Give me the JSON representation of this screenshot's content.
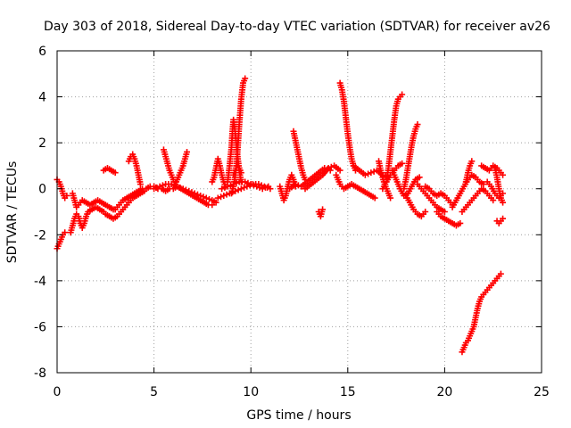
{
  "chart_data": {
    "type": "scatter",
    "title": "Day 303 of 2018, Sidereal Day-to-day VTEC variation (SDTVAR) for receiver av26",
    "xlabel": "GPS time / hours",
    "ylabel": "SDTVAR / TECUs",
    "xlim": [
      0,
      25
    ],
    "ylim": [
      -8,
      6
    ],
    "xticks": [
      0,
      5,
      10,
      15,
      20,
      25
    ],
    "yticks": [
      -8,
      -6,
      -4,
      -2,
      0,
      2,
      4,
      6
    ],
    "xtick_labels": [
      "0",
      "5",
      "10",
      "15",
      "20",
      "25"
    ],
    "ytick_labels": [
      "-8",
      "-6",
      "-4",
      "-2",
      "0",
      "2",
      "4",
      "6"
    ],
    "grid": true,
    "marker": "plus",
    "color": "#ff0000",
    "segments": [
      [
        [
          0.0,
          -2.6
        ],
        [
          0.1,
          -2.4
        ],
        [
          0.2,
          -2.2
        ],
        [
          0.3,
          -2.0
        ],
        [
          0.4,
          -1.9
        ]
      ],
      [
        [
          0.0,
          0.4
        ],
        [
          0.1,
          0.3
        ],
        [
          0.2,
          0.1
        ],
        [
          0.3,
          -0.2
        ],
        [
          0.4,
          -0.4
        ],
        [
          0.5,
          -0.3
        ]
      ],
      [
        [
          0.7,
          -1.9
        ],
        [
          0.8,
          -1.6
        ],
        [
          0.9,
          -1.3
        ],
        [
          1.0,
          -1.1
        ],
        [
          1.1,
          -1.2
        ],
        [
          1.2,
          -1.5
        ],
        [
          1.3,
          -1.7
        ],
        [
          1.4,
          -1.5
        ],
        [
          1.5,
          -1.2
        ],
        [
          1.6,
          -1.0
        ],
        [
          1.8,
          -0.9
        ],
        [
          2.0,
          -0.8
        ],
        [
          2.2,
          -0.9
        ],
        [
          2.4,
          -1.0
        ]
      ],
      [
        [
          0.8,
          -0.2
        ],
        [
          0.9,
          -0.5
        ],
        [
          1.0,
          -0.8
        ],
        [
          1.1,
          -0.7
        ],
        [
          1.3,
          -0.5
        ],
        [
          1.5,
          -0.6
        ],
        [
          1.7,
          -0.7
        ],
        [
          1.9,
          -0.6
        ],
        [
          2.1,
          -0.5
        ],
        [
          2.3,
          -0.6
        ],
        [
          2.5,
          -0.7
        ],
        [
          2.7,
          -0.8
        ],
        [
          2.9,
          -0.9
        ]
      ],
      [
        [
          2.5,
          -1.1
        ],
        [
          2.7,
          -1.2
        ],
        [
          2.9,
          -1.3
        ],
        [
          3.1,
          -1.2
        ],
        [
          3.3,
          -1.0
        ],
        [
          3.5,
          -0.8
        ],
        [
          3.7,
          -0.6
        ],
        [
          3.9,
          -0.4
        ],
        [
          4.1,
          -0.3
        ],
        [
          4.3,
          -0.2
        ],
        [
          4.5,
          -0.1
        ]
      ],
      [
        [
          3.0,
          -0.9
        ],
        [
          3.2,
          -0.7
        ],
        [
          3.4,
          -0.5
        ],
        [
          3.6,
          -0.4
        ],
        [
          3.8,
          -0.3
        ],
        [
          4.0,
          -0.2
        ],
        [
          4.2,
          -0.1
        ],
        [
          4.4,
          0.0
        ],
        [
          4.6,
          0.0
        ],
        [
          4.8,
          0.1
        ],
        [
          5.0,
          0.1
        ],
        [
          5.2,
          0.0
        ],
        [
          5.4,
          0.0
        ],
        [
          5.6,
          -0.1
        ],
        [
          5.8,
          0.0
        ],
        [
          6.0,
          0.0
        ],
        [
          6.2,
          0.1
        ],
        [
          6.4,
          0.0
        ],
        [
          6.6,
          -0.1
        ],
        [
          6.8,
          -0.2
        ],
        [
          7.0,
          -0.3
        ],
        [
          7.2,
          -0.4
        ],
        [
          7.4,
          -0.5
        ],
        [
          7.6,
          -0.6
        ],
        [
          7.8,
          -0.7
        ],
        [
          8.0,
          -0.7
        ]
      ],
      [
        [
          2.4,
          0.8
        ],
        [
          2.6,
          0.9
        ],
        [
          2.8,
          0.8
        ],
        [
          3.0,
          0.7
        ]
      ],
      [
        [
          3.7,
          1.2
        ],
        [
          3.8,
          1.4
        ],
        [
          3.9,
          1.5
        ],
        [
          4.0,
          1.3
        ],
        [
          4.1,
          1.0
        ],
        [
          4.2,
          0.6
        ],
        [
          4.3,
          0.2
        ]
      ],
      [
        [
          5.5,
          1.7
        ],
        [
          5.6,
          1.4
        ],
        [
          5.7,
          1.1
        ],
        [
          5.8,
          0.8
        ],
        [
          5.9,
          0.6
        ],
        [
          6.0,
          0.4
        ],
        [
          6.1,
          0.3
        ]
      ],
      [
        [
          6.7,
          1.6
        ],
        [
          6.6,
          1.3
        ],
        [
          6.5,
          1.0
        ],
        [
          6.4,
          0.8
        ],
        [
          6.3,
          0.6
        ],
        [
          6.2,
          0.4
        ],
        [
          6.1,
          0.2
        ]
      ],
      [
        [
          5.0,
          0.0
        ],
        [
          5.3,
          0.1
        ],
        [
          5.6,
          0.2
        ],
        [
          5.9,
          0.2
        ],
        [
          6.2,
          0.1
        ],
        [
          6.5,
          0.0
        ],
        [
          6.8,
          -0.1
        ],
        [
          7.1,
          -0.2
        ],
        [
          7.4,
          -0.3
        ],
        [
          7.7,
          -0.4
        ],
        [
          8.0,
          -0.5
        ],
        [
          8.2,
          -0.6
        ]
      ],
      [
        [
          8.0,
          0.3
        ],
        [
          8.1,
          0.5
        ],
        [
          8.2,
          0.9
        ],
        [
          8.3,
          1.3
        ],
        [
          8.4,
          1.0
        ],
        [
          8.5,
          0.6
        ],
        [
          8.6,
          0.3
        ],
        [
          8.7,
          0.1
        ]
      ],
      [
        [
          8.8,
          0.3
        ],
        [
          8.9,
          1.0
        ],
        [
          9.0,
          1.8
        ],
        [
          9.05,
          2.5
        ],
        [
          9.1,
          3.0
        ],
        [
          9.2,
          2.4
        ],
        [
          9.3,
          1.5
        ],
        [
          9.4,
          0.8
        ],
        [
          9.5,
          0.3
        ]
      ],
      [
        [
          9.1,
          0.6
        ],
        [
          9.2,
          0.8
        ],
        [
          9.3,
          1.0
        ],
        [
          9.4,
          0.9
        ],
        [
          9.5,
          0.7
        ]
      ],
      [
        [
          9.0,
          -0.2
        ],
        [
          9.1,
          0.1
        ],
        [
          9.2,
          0.6
        ],
        [
          9.3,
          1.5
        ],
        [
          9.4,
          2.8
        ],
        [
          9.5,
          3.9
        ],
        [
          9.6,
          4.6
        ],
        [
          9.7,
          4.8
        ]
      ],
      [
        [
          8.3,
          -0.4
        ],
        [
          8.6,
          -0.3
        ],
        [
          8.9,
          -0.2
        ],
        [
          9.2,
          -0.1
        ],
        [
          9.5,
          0.0
        ],
        [
          9.8,
          0.1
        ],
        [
          10.1,
          0.2
        ],
        [
          10.4,
          0.2
        ],
        [
          10.7,
          0.1
        ],
        [
          11.0,
          0.0
        ]
      ],
      [
        [
          8.5,
          0.0
        ],
        [
          8.8,
          0.1
        ],
        [
          9.1,
          0.2
        ],
        [
          9.4,
          0.3
        ],
        [
          9.7,
          0.3
        ],
        [
          10.0,
          0.2
        ],
        [
          10.3,
          0.1
        ],
        [
          10.6,
          0.0
        ],
        [
          10.9,
          0.1
        ]
      ],
      [
        [
          11.5,
          0.1
        ],
        [
          11.6,
          -0.2
        ],
        [
          11.7,
          -0.5
        ],
        [
          11.8,
          -0.3
        ],
        [
          11.9,
          0.1
        ],
        [
          12.0,
          0.4
        ],
        [
          12.1,
          0.6
        ],
        [
          12.2,
          0.4
        ],
        [
          12.3,
          0.1
        ]
      ],
      [
        [
          12.2,
          2.5
        ],
        [
          12.3,
          2.1
        ],
        [
          12.4,
          1.7
        ],
        [
          12.5,
          1.3
        ],
        [
          12.6,
          0.9
        ],
        [
          12.7,
          0.6
        ],
        [
          12.8,
          0.4
        ]
      ],
      [
        [
          12.0,
          0.0
        ],
        [
          12.3,
          0.2
        ],
        [
          12.6,
          0.1
        ],
        [
          12.9,
          0.3
        ],
        [
          13.2,
          0.5
        ],
        [
          13.5,
          0.7
        ],
        [
          13.8,
          0.9
        ],
        [
          14.1,
          0.8
        ]
      ],
      [
        [
          12.8,
          0.0
        ],
        [
          13.1,
          0.2
        ],
        [
          13.4,
          0.4
        ],
        [
          13.7,
          0.6
        ],
        [
          14.0,
          0.9
        ],
        [
          14.3,
          1.0
        ],
        [
          14.6,
          0.8
        ]
      ],
      [
        [
          13.5,
          -1.0
        ],
        [
          13.6,
          -1.2
        ],
        [
          13.7,
          -0.9
        ]
      ],
      [
        [
          14.4,
          0.6
        ],
        [
          14.6,
          0.2
        ],
        [
          14.8,
          0.0
        ],
        [
          15.0,
          0.1
        ],
        [
          15.2,
          0.2
        ],
        [
          15.4,
          0.1
        ],
        [
          15.6,
          0.0
        ],
        [
          15.8,
          -0.1
        ],
        [
          16.0,
          -0.2
        ],
        [
          16.2,
          -0.3
        ],
        [
          16.4,
          -0.4
        ]
      ],
      [
        [
          14.6,
          4.6
        ],
        [
          14.7,
          4.3
        ],
        [
          14.8,
          3.8
        ],
        [
          14.9,
          3.1
        ],
        [
          15.0,
          2.4
        ],
        [
          15.1,
          1.8
        ],
        [
          15.2,
          1.3
        ],
        [
          15.3,
          1.0
        ],
        [
          15.4,
          0.8
        ]
      ],
      [
        [
          15.3,
          1.0
        ],
        [
          15.6,
          0.8
        ],
        [
          15.9,
          0.6
        ],
        [
          16.2,
          0.7
        ],
        [
          16.5,
          0.8
        ],
        [
          16.8,
          0.6
        ],
        [
          17.1,
          0.5
        ]
      ],
      [
        [
          16.6,
          1.2
        ],
        [
          16.7,
          0.8
        ],
        [
          16.8,
          0.5
        ],
        [
          16.9,
          0.2
        ],
        [
          17.0,
          0.0
        ],
        [
          17.1,
          -0.2
        ],
        [
          17.2,
          -0.4
        ]
      ],
      [
        [
          17.0,
          0.4
        ],
        [
          17.1,
          0.9
        ],
        [
          17.2,
          1.6
        ],
        [
          17.3,
          2.3
        ],
        [
          17.4,
          3.0
        ],
        [
          17.5,
          3.6
        ],
        [
          17.6,
          3.9
        ],
        [
          17.7,
          4.0
        ],
        [
          17.8,
          4.1
        ]
      ],
      [
        [
          16.8,
          0.0
        ],
        [
          17.0,
          0.3
        ],
        [
          17.2,
          0.6
        ],
        [
          17.4,
          0.8
        ],
        [
          17.6,
          1.0
        ],
        [
          17.8,
          1.1
        ]
      ],
      [
        [
          17.3,
          0.8
        ],
        [
          17.5,
          0.4
        ],
        [
          17.7,
          0.0
        ],
        [
          17.9,
          -0.3
        ],
        [
          18.1,
          -0.2
        ],
        [
          18.3,
          0.1
        ],
        [
          18.5,
          0.4
        ],
        [
          18.7,
          0.5
        ]
      ],
      [
        [
          17.9,
          0.0
        ],
        [
          18.0,
          0.4
        ],
        [
          18.1,
          0.9
        ],
        [
          18.2,
          1.4
        ],
        [
          18.3,
          1.9
        ],
        [
          18.4,
          2.3
        ],
        [
          18.5,
          2.6
        ],
        [
          18.6,
          2.8
        ]
      ],
      [
        [
          18.0,
          -0.3
        ],
        [
          18.2,
          -0.6
        ],
        [
          18.4,
          -0.9
        ],
        [
          18.6,
          -1.1
        ],
        [
          18.8,
          -1.2
        ],
        [
          19.0,
          -1.0
        ]
      ],
      [
        [
          18.6,
          0.2
        ],
        [
          18.8,
          0.0
        ],
        [
          19.0,
          -0.2
        ],
        [
          19.2,
          -0.4
        ],
        [
          19.4,
          -0.6
        ],
        [
          19.6,
          -0.8
        ],
        [
          19.8,
          -0.9
        ],
        [
          20.0,
          -1.0
        ]
      ],
      [
        [
          19.0,
          0.1
        ],
        [
          19.2,
          0.0
        ],
        [
          19.4,
          -0.2
        ],
        [
          19.6,
          -0.3
        ],
        [
          19.8,
          -0.2
        ],
        [
          20.0,
          -0.3
        ],
        [
          20.2,
          -0.5
        ],
        [
          20.4,
          -0.7
        ]
      ],
      [
        [
          19.6,
          -1.0
        ],
        [
          19.8,
          -1.2
        ],
        [
          20.0,
          -1.3
        ],
        [
          20.2,
          -1.4
        ],
        [
          20.4,
          -1.5
        ],
        [
          20.6,
          -1.6
        ],
        [
          20.8,
          -1.5
        ]
      ],
      [
        [
          20.4,
          -0.8
        ],
        [
          20.6,
          -0.5
        ],
        [
          20.8,
          -0.2
        ],
        [
          21.0,
          0.1
        ],
        [
          21.2,
          0.4
        ],
        [
          21.4,
          0.6
        ],
        [
          21.6,
          0.5
        ],
        [
          21.8,
          0.3
        ],
        [
          22.0,
          0.2
        ]
      ],
      [
        [
          20.9,
          -1.0
        ],
        [
          21.1,
          -0.8
        ],
        [
          21.3,
          -0.6
        ],
        [
          21.5,
          -0.4
        ],
        [
          21.7,
          -0.2
        ],
        [
          21.9,
          0.0
        ],
        [
          22.1,
          -0.1
        ],
        [
          22.3,
          -0.3
        ],
        [
          22.5,
          -0.5
        ]
      ],
      [
        [
          21.1,
          0.3
        ],
        [
          21.2,
          0.7
        ],
        [
          21.3,
          1.0
        ],
        [
          21.4,
          1.2
        ]
      ],
      [
        [
          21.9,
          1.0
        ],
        [
          22.1,
          0.9
        ],
        [
          22.3,
          0.8
        ],
        [
          22.5,
          1.0
        ],
        [
          22.7,
          0.9
        ],
        [
          22.9,
          0.7
        ],
        [
          23.0,
          0.6
        ]
      ],
      [
        [
          22.2,
          0.3
        ],
        [
          22.4,
          0.1
        ],
        [
          22.6,
          -0.2
        ],
        [
          22.8,
          -0.4
        ],
        [
          23.0,
          -0.2
        ]
      ],
      [
        [
          22.6,
          0.9
        ],
        [
          22.7,
          0.5
        ],
        [
          22.8,
          0.0
        ],
        [
          22.9,
          -0.4
        ],
        [
          23.0,
          -0.6
        ]
      ],
      [
        [
          22.7,
          -1.4
        ],
        [
          22.8,
          -1.5
        ],
        [
          22.9,
          -1.4
        ],
        [
          23.0,
          -1.3
        ]
      ],
      [
        [
          20.9,
          -7.1
        ],
        [
          21.0,
          -6.9
        ],
        [
          21.1,
          -6.7
        ],
        [
          21.2,
          -6.6
        ],
        [
          21.3,
          -6.4
        ],
        [
          21.4,
          -6.2
        ],
        [
          21.5,
          -6.0
        ],
        [
          21.6,
          -5.6
        ],
        [
          21.7,
          -5.2
        ],
        [
          21.8,
          -4.9
        ],
        [
          21.9,
          -4.7
        ],
        [
          22.0,
          -4.6
        ],
        [
          22.1,
          -4.5
        ],
        [
          22.2,
          -4.4
        ],
        [
          22.3,
          -4.3
        ],
        [
          22.4,
          -4.2
        ],
        [
          22.5,
          -4.1
        ],
        [
          22.6,
          -4.0
        ],
        [
          22.7,
          -3.9
        ],
        [
          22.8,
          -3.8
        ],
        [
          22.9,
          -3.7
        ]
      ]
    ]
  }
}
